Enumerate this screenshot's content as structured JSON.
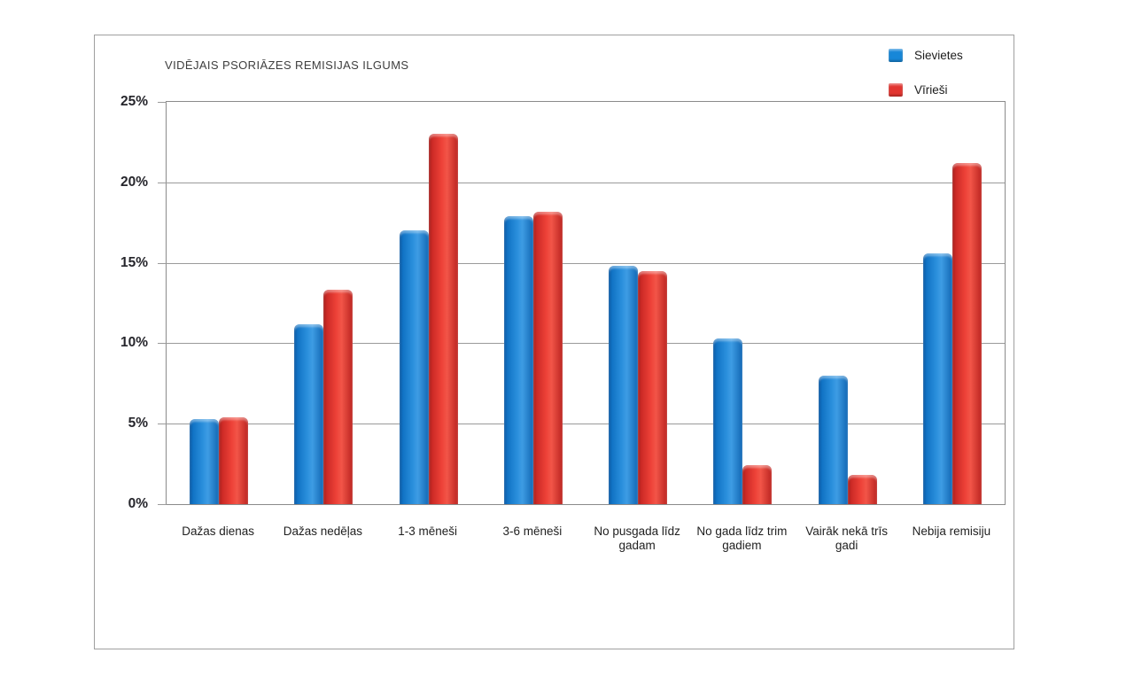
{
  "figure": {
    "title": "VIDĒJAIS PSORIĀZES REMISIJAS ILGUMS"
  },
  "chart_data": {
    "type": "bar",
    "title": "VIDĒJAIS PSORIĀZES REMISIJAS ILGUMS",
    "categories": [
      "Dažas dienas",
      "Dažas nedēļas",
      "1-3 mēneši",
      "3-6 mēneši",
      "No pusgada līdz gadam",
      "No gada līdz trim gadiem",
      "Vairāk nekā trīs gadi",
      "Nebija remisiju"
    ],
    "series": [
      {
        "name": "Sievietes",
        "color": "#1787d8",
        "values": [
          5.3,
          11.2,
          17.0,
          17.9,
          14.8,
          10.3,
          8.0,
          15.6
        ]
      },
      {
        "name": "Vīrieši",
        "color": "#e23530",
        "values": [
          5.4,
          13.3,
          23.0,
          18.2,
          14.5,
          2.4,
          1.8,
          21.2
        ]
      }
    ],
    "xlabel": "",
    "ylabel": "",
    "ylim": [
      0,
      25
    ],
    "yticks": [
      0,
      5,
      10,
      15,
      20,
      25
    ],
    "ytick_format": "{v}%",
    "grid": "horizontal",
    "legend_position": "top-right"
  }
}
